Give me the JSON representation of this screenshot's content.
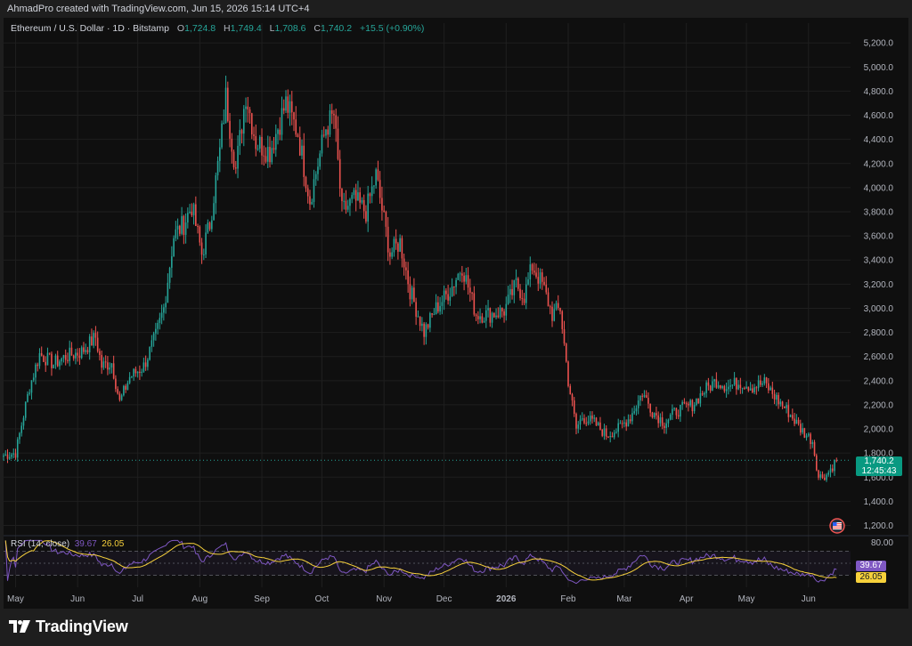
{
  "header": {
    "attribution": "AhmadPro created with TradingView.com, Jun 15, 2026 15:14 UTC+4"
  },
  "legend": {
    "symbol": "Ethereum / U.S. Dollar · 1D · Bitstamp",
    "o_label": "O",
    "o_value": "1,724.8",
    "h_label": "H",
    "h_value": "1,749.4",
    "l_label": "L",
    "l_value": "1,708.6",
    "c_label": "C",
    "c_value": "1,740.2",
    "change": "+15.5 (+0.90%)"
  },
  "price_label": {
    "price": "1,740.2",
    "countdown": "12:45:43"
  },
  "rsi": {
    "label": "RSI (14, close)",
    "value": "39.67",
    "ma_value": "26.05",
    "axis_label": "80.00"
  },
  "colors": {
    "up": "#26a69a",
    "down": "#ef5350",
    "rsi": "#7e57c2",
    "rsi_ma": "#f7d13b",
    "background": "#0f0f0f"
  },
  "brand": {
    "name": "TradingView"
  },
  "icons": {
    "logo": "tradingview-logo-icon",
    "flag": "us-flag-icon"
  },
  "chart_data": {
    "type": "candlestick",
    "title": "Ethereum / U.S. Dollar · 1D · Bitstamp",
    "y_ticks": [
      "5,200.0",
      "5,000.0",
      "4,800.0",
      "4,600.0",
      "4,400.0",
      "4,200.0",
      "4,000.0",
      "3,800.0",
      "3,600.0",
      "3,400.0",
      "3,200.0",
      "3,000.0",
      "2,800.0",
      "2,600.0",
      "2,400.0",
      "2,200.0",
      "2,000.0",
      "1,800.0",
      "1,600.0",
      "1,400.0",
      "1,200.0"
    ],
    "x_ticks": [
      "May",
      "Jun",
      "Jul",
      "Aug",
      "Sep",
      "Oct",
      "Nov",
      "Dec",
      "2026",
      "Feb",
      "Mar",
      "Apr",
      "May",
      "Jun"
    ],
    "ylim": [
      1130,
      5290
    ],
    "grid": true,
    "last_close": 1740.2,
    "close_path": [
      {
        "date": "2025-04-25",
        "close": 1780
      },
      {
        "date": "2025-05-01",
        "close": 1800
      },
      {
        "date": "2025-05-08",
        "close": 2350
      },
      {
        "date": "2025-05-13",
        "close": 2620
      },
      {
        "date": "2025-05-20",
        "close": 2540
      },
      {
        "date": "2025-05-26",
        "close": 2600
      },
      {
        "date": "2025-06-03",
        "close": 2640
      },
      {
        "date": "2025-06-10",
        "close": 2760
      },
      {
        "date": "2025-06-13",
        "close": 2520
      },
      {
        "date": "2025-06-18",
        "close": 2550
      },
      {
        "date": "2025-06-22",
        "close": 2220
      },
      {
        "date": "2025-06-27",
        "close": 2430
      },
      {
        "date": "2025-07-04",
        "close": 2520
      },
      {
        "date": "2025-07-10",
        "close": 2770
      },
      {
        "date": "2025-07-14",
        "close": 3000
      },
      {
        "date": "2025-07-19",
        "close": 3600
      },
      {
        "date": "2025-07-24",
        "close": 3700
      },
      {
        "date": "2025-07-28",
        "close": 3850
      },
      {
        "date": "2025-08-02",
        "close": 3450
      },
      {
        "date": "2025-08-06",
        "close": 3700
      },
      {
        "date": "2025-08-11",
        "close": 4300
      },
      {
        "date": "2025-08-14",
        "close": 4750
      },
      {
        "date": "2025-08-19",
        "close": 4150
      },
      {
        "date": "2025-08-24",
        "close": 4780
      },
      {
        "date": "2025-08-29",
        "close": 4380
      },
      {
        "date": "2025-09-05",
        "close": 4300
      },
      {
        "date": "2025-09-13",
        "close": 4700
      },
      {
        "date": "2025-09-19",
        "close": 4450
      },
      {
        "date": "2025-09-25",
        "close": 3900
      },
      {
        "date": "2025-10-03",
        "close": 4500
      },
      {
        "date": "2025-10-07",
        "close": 4600
      },
      {
        "date": "2025-10-11",
        "close": 3800
      },
      {
        "date": "2025-10-17",
        "close": 3900
      },
      {
        "date": "2025-10-23",
        "close": 3800
      },
      {
        "date": "2025-10-28",
        "close": 4100
      },
      {
        "date": "2025-11-04",
        "close": 3450
      },
      {
        "date": "2025-11-09",
        "close": 3550
      },
      {
        "date": "2025-11-14",
        "close": 3150
      },
      {
        "date": "2025-11-21",
        "close": 2800
      },
      {
        "date": "2025-11-27",
        "close": 3000
      },
      {
        "date": "2025-12-04",
        "close": 3150
      },
      {
        "date": "2025-12-10",
        "close": 3350
      },
      {
        "date": "2025-12-17",
        "close": 2950
      },
      {
        "date": "2025-12-24",
        "close": 2950
      },
      {
        "date": "2025-12-31",
        "close": 2980
      },
      {
        "date": "2026-01-06",
        "close": 3200
      },
      {
        "date": "2026-01-10",
        "close": 3100
      },
      {
        "date": "2026-01-14",
        "close": 3350
      },
      {
        "date": "2026-01-19",
        "close": 3200
      },
      {
        "date": "2026-01-24",
        "close": 2950
      },
      {
        "date": "2026-01-28",
        "close": 3000
      },
      {
        "date": "2026-02-01",
        "close": 2400
      },
      {
        "date": "2026-02-05",
        "close": 2000
      },
      {
        "date": "2026-02-08",
        "close": 2100
      },
      {
        "date": "2026-02-14",
        "close": 2050
      },
      {
        "date": "2026-02-20",
        "close": 1950
      },
      {
        "date": "2026-02-26",
        "close": 2000
      },
      {
        "date": "2026-03-04",
        "close": 2100
      },
      {
        "date": "2026-03-10",
        "close": 2300
      },
      {
        "date": "2026-03-15",
        "close": 2150
      },
      {
        "date": "2026-03-21",
        "close": 2050
      },
      {
        "date": "2026-03-27",
        "close": 2150
      },
      {
        "date": "2026-04-04",
        "close": 2200
      },
      {
        "date": "2026-04-10",
        "close": 2320
      },
      {
        "date": "2026-04-16",
        "close": 2400
      },
      {
        "date": "2026-04-22",
        "close": 2350
      },
      {
        "date": "2026-04-28",
        "close": 2390
      },
      {
        "date": "2026-05-04",
        "close": 2350
      },
      {
        "date": "2026-05-10",
        "close": 2380
      },
      {
        "date": "2026-05-16",
        "close": 2250
      },
      {
        "date": "2026-05-22",
        "close": 2140
      },
      {
        "date": "2026-05-28",
        "close": 2000
      },
      {
        "date": "2026-06-03",
        "close": 1900
      },
      {
        "date": "2026-06-06",
        "close": 1600
      },
      {
        "date": "2026-06-10",
        "close": 1620
      },
      {
        "date": "2026-06-15",
        "close": 1740
      }
    ],
    "rsi_panel": {
      "name": "RSI (14, close)",
      "last_rsi": 39.67,
      "last_ma": 26.05,
      "upper_band": 70,
      "lower_band": 30
    }
  }
}
